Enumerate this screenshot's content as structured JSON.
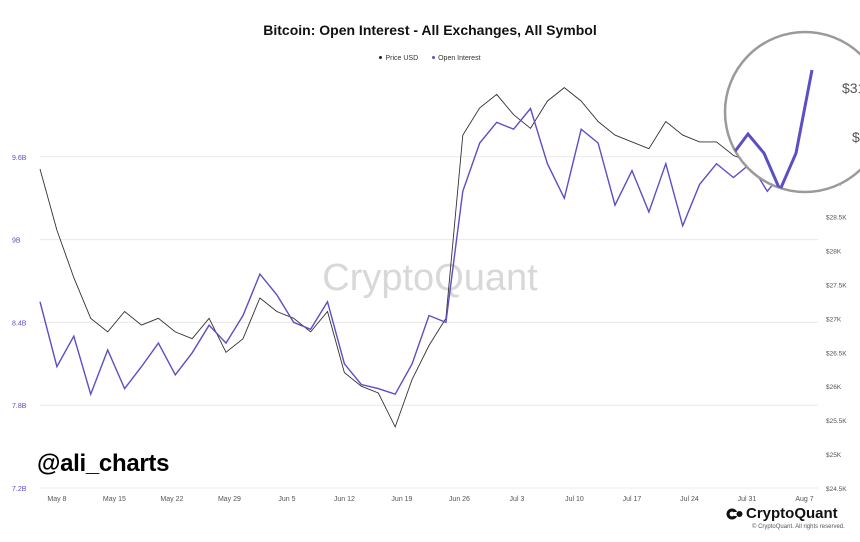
{
  "chart_data": {
    "type": "line",
    "title": "Bitcoin: Open Interest - All Exchanges, All Symbol",
    "legend": [
      "Price USD",
      "Open Interest"
    ],
    "legend_position": "top-center",
    "grid": "horizontal",
    "x_ticks": [
      "May 8",
      "May 15",
      "May 22",
      "May 29",
      "Jun 5",
      "Jun 12",
      "Jun 19",
      "Jun 26",
      "Jul 3",
      "Jul 10",
      "Jul 17",
      "Jul 24",
      "Jul 31",
      "Aug 7"
    ],
    "y_left": {
      "label": "Open Interest",
      "ticks": [
        "7.2B",
        "7.8B",
        "8.4B",
        "9B",
        "9.6B"
      ],
      "range": [
        7.2,
        10.2
      ],
      "color": "#5b4fc4"
    },
    "y_right": {
      "label": "Price USD",
      "ticks": [
        "$24.5K",
        "$25K",
        "$25.5K",
        "$26K",
        "$26.5K",
        "$27K",
        "$27.5K",
        "$28K",
        "$28.5K",
        "$29K",
        "$29.5K"
      ],
      "range": [
        24.5,
        30.6
      ],
      "color": "#333333"
    },
    "x_range": [
      0,
      92
    ],
    "series": [
      {
        "name": "Open Interest",
        "color": "#5b4fc4",
        "x": [
          0,
          2,
          4,
          6,
          8,
          10,
          12,
          14,
          16,
          18,
          20,
          22,
          24,
          26,
          28,
          30,
          32,
          34,
          36,
          38,
          40,
          42,
          44,
          46,
          48,
          50,
          52,
          54,
          56,
          58,
          60,
          62,
          64,
          66,
          68,
          70,
          72,
          74,
          76,
          78,
          80,
          82,
          84,
          86,
          88,
          90,
          92
        ],
        "values": [
          8.55,
          8.08,
          8.3,
          7.88,
          8.2,
          7.92,
          8.08,
          8.25,
          8.02,
          8.18,
          8.38,
          8.25,
          8.45,
          8.75,
          8.6,
          8.4,
          8.35,
          8.55,
          8.1,
          7.95,
          7.92,
          7.88,
          8.1,
          8.45,
          8.4,
          9.35,
          9.7,
          9.85,
          9.8,
          9.95,
          9.55,
          9.3,
          9.8,
          9.7,
          9.25,
          9.5,
          9.2,
          9.55,
          9.1,
          9.4,
          9.55,
          9.45,
          9.55,
          9.35,
          9.5,
          9.78,
          9.6
        ],
        "x_end": [
          92,
          96,
          100,
          104,
          108,
          112,
          116
        ],
        "values_end": [
          9.65,
          9.75,
          9.85,
          9.8,
          9.9,
          9.95,
          10.05
        ]
      },
      {
        "name": "Price USD",
        "color": "#333333",
        "x": [
          0,
          2,
          4,
          6,
          8,
          10,
          12,
          14,
          16,
          18,
          20,
          22,
          24,
          26,
          28,
          30,
          32,
          34,
          36,
          38,
          40,
          42,
          44,
          46,
          48,
          50,
          52,
          54,
          56,
          58,
          60,
          62,
          64,
          66,
          68,
          70,
          72,
          74,
          76,
          78,
          80,
          82,
          84,
          86,
          88,
          90,
          92
        ],
        "values": [
          29.2,
          28.3,
          27.6,
          27.0,
          26.8,
          27.1,
          26.9,
          27.0,
          26.8,
          26.7,
          27.0,
          26.5,
          26.7,
          27.3,
          27.1,
          27.0,
          26.8,
          27.1,
          26.2,
          26.0,
          25.9,
          25.4,
          26.1,
          26.6,
          27.0,
          29.7,
          30.1,
          30.3,
          30.0,
          29.8,
          30.2,
          30.4,
          30.2,
          29.9,
          29.7,
          29.6,
          29.5,
          29.9,
          29.7,
          29.6,
          29.6,
          29.4,
          29.3,
          29.2,
          29.3,
          29.2,
          29.1
        ]
      }
    ],
    "annotation": {
      "type": "magnifier-circle",
      "visible_labels": [
        "$31",
        "$3"
      ]
    }
  },
  "watermark": "CryptoQuant",
  "handle": "@ali_charts",
  "brand": {
    "name": "CryptoQuant",
    "copyright": "© CryptoQuant. All rights reserved."
  }
}
